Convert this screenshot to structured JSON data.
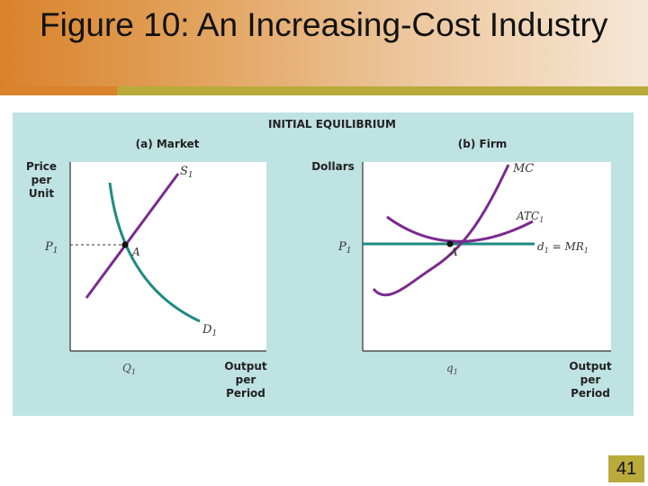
{
  "slide": {
    "title": "Figure 10:  An Increasing-Cost Industry",
    "page_number": "41"
  },
  "figure": {
    "heading": "INITIAL EQUILIBRIUM",
    "market": {
      "panel_label": "(a) Market",
      "y_label_lines": [
        "Price",
        "per",
        "Unit"
      ],
      "x_label_lines": [
        "Output",
        "per",
        "Period"
      ],
      "price_label": "P",
      "price_sub": "1",
      "quantity_label": "Q",
      "quantity_sub": "1",
      "supply_label": "S",
      "supply_sub": "1",
      "demand_label": "D",
      "demand_sub": "1",
      "point_label": "A"
    },
    "firm": {
      "panel_label": "(b) Firm",
      "y_label": "Dollars",
      "x_label_lines": [
        "Output",
        "per",
        "Period"
      ],
      "price_label": "P",
      "price_sub": "1",
      "quantity_label": "q",
      "quantity_sub": "1",
      "mc_label": "MC",
      "atc_label": "ATC",
      "atc_sub": "1",
      "demand_label": "d",
      "demand_sub": "1",
      "demand_eq": " = MR",
      "mr_sub": "1",
      "point_label": "A"
    }
  },
  "colors": {
    "header_start": "#d9822b",
    "header_end": "#f6e7d6",
    "accent_bar": "#b9aa3a",
    "figure_bg": "#bfe2e2",
    "supply_curve": "#7b2a8f",
    "demand_curve": "#1f8a80",
    "mc_curve": "#7b2a8f",
    "atc_curve": "#7b2a8f",
    "firm_demand_line": "#1f8a80"
  }
}
